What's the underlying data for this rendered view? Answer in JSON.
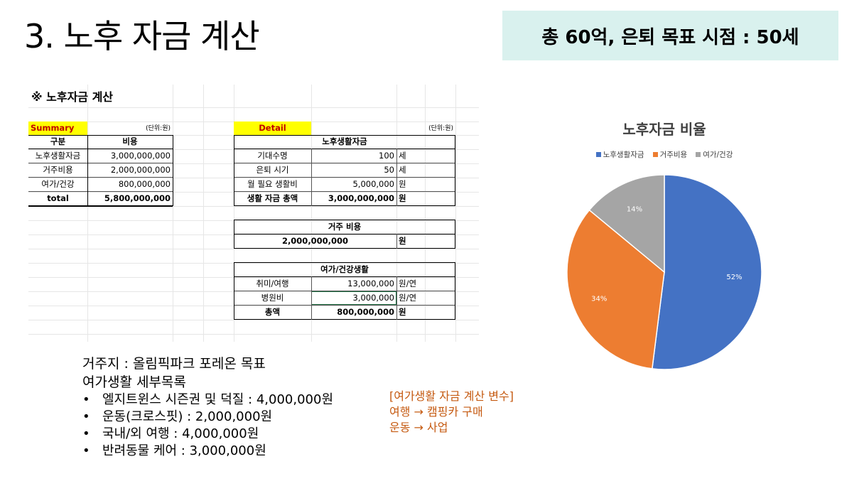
{
  "slide": {
    "title": "3. 노후 자금 계산",
    "goal": "총 60억, 은퇴 목표 시점  : 50세"
  },
  "sheet": {
    "title": "※ 노후자금 계산",
    "summary": {
      "label": "Summary",
      "unit": "(단위:원)",
      "headers": [
        "구분",
        "비용"
      ],
      "rows": [
        [
          "노후생활자금",
          "3,000,000,000"
        ],
        [
          "거주비용",
          "2,000,000,000"
        ],
        [
          "여가/건강",
          "800,000,000"
        ],
        [
          "total",
          "5,800,000,000"
        ]
      ]
    },
    "detail": {
      "label": "Detail",
      "unit": "(단위:원)",
      "living": {
        "header": "노후생활자금",
        "rows": [
          [
            "기대수명",
            "100",
            "세"
          ],
          [
            "은퇴 시기",
            "50",
            "세"
          ],
          [
            "월 필요 생활비",
            "5,000,000",
            "원"
          ],
          [
            "생활 자금 총액",
            "3,000,000,000",
            "원"
          ]
        ]
      },
      "housing": {
        "header": "거주 비용",
        "value": "2,000,000,000",
        "unit": "원"
      },
      "leisure": {
        "header": "여가/건강생활",
        "rows": [
          [
            "취미/여행",
            "13,000,000",
            "원/연"
          ],
          [
            "병원비",
            "3,000,000",
            "원/연"
          ],
          [
            "총액",
            "800,000,000",
            "원"
          ]
        ]
      }
    }
  },
  "notes": {
    "residence": "거주지 : 올림픽파크 포레온 목표",
    "leisure_title": "여가생활 세부목록",
    "bullet_glyph": "•",
    "items": [
      "엘지트윈스 시즌권 및 덕질 : 4,000,000원",
      "운동(크로스핏) : 2,000,000원",
      "국내/외 여행 : 4,000,000원",
      "반려동물 케어 : 3,000,000원"
    ]
  },
  "variables": {
    "title": "[여가생활 자금 계산 변수]",
    "lines": [
      "여행 → 캠핑카 구매",
      "운동 → 사업"
    ]
  },
  "chart_data": {
    "type": "pie",
    "title": "노후자금 비율",
    "categories": [
      "노후생활자금",
      "거주비용",
      "여가/건강"
    ],
    "values": [
      52,
      34,
      14
    ],
    "labels": [
      "52%",
      "34%",
      "14%"
    ],
    "colors": [
      "#4472c4",
      "#ed7d31",
      "#a5a5a5"
    ],
    "legend_position": "top"
  }
}
